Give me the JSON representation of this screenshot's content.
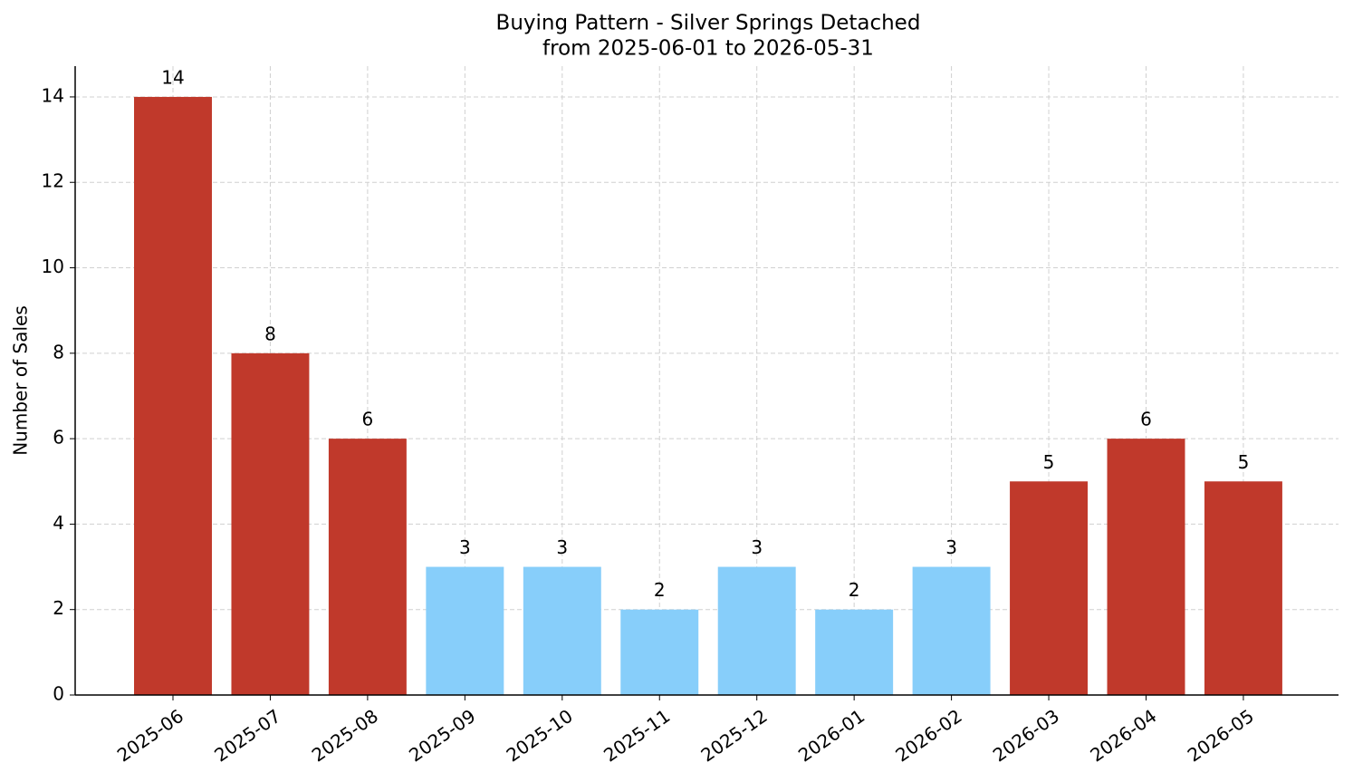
{
  "chart_data": {
    "type": "bar",
    "title": "Buying Pattern - Silver Springs Detached",
    "subtitle": "from 2025-06-01 to 2026-05-31",
    "y_label": "Number of Sales",
    "categories": [
      "2025-06",
      "2025-07",
      "2025-08",
      "2025-09",
      "2025-10",
      "2025-11",
      "2025-12",
      "2026-01",
      "2026-02",
      "2026-03",
      "2026-04",
      "2026-05"
    ],
    "values": [
      14,
      8,
      6,
      3,
      3,
      2,
      3,
      2,
      3,
      5,
      6,
      5
    ],
    "colors": [
      "#c0392b",
      "#c0392b",
      "#c0392b",
      "#87cefa",
      "#87cefa",
      "#87cefa",
      "#87cefa",
      "#87cefa",
      "#87cefa",
      "#c0392b",
      "#c0392b",
      "#c0392b"
    ],
    "ylim": [
      0,
      14.72
    ],
    "yticks": [
      0,
      2,
      4,
      6,
      8,
      10,
      12,
      14
    ],
    "grid": true
  }
}
